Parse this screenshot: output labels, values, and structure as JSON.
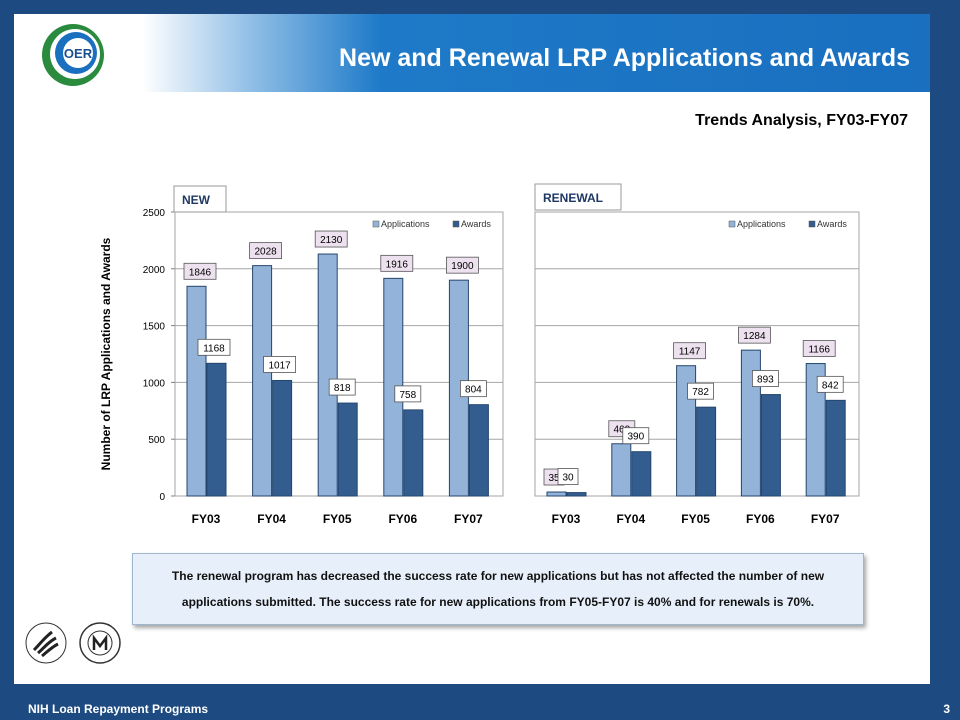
{
  "slide": {
    "title": "New and Renewal LRP Applications and Awards",
    "subtitle": "Trends Analysis, FY03-FY07",
    "note": "The renewal program has decreased the success rate for new applications but has not affected the number of new applications submitted. The success rate for new applications from FY05-FY07 is 40% and for renewals is 70%.",
    "footer_left": "NIH Loan Repayment Programs",
    "footer_right": "3",
    "logo_text": "OER",
    "hhs_logo_icon": "hhs-eagle-icon",
    "nih_logo_icon": "nih-logo-icon"
  },
  "chart_data": [
    {
      "type": "bar",
      "title": "NEW",
      "ylabel": "Number of LRP Applications and Awards",
      "categories": [
        "FY03",
        "FY04",
        "FY05",
        "FY06",
        "FY07"
      ],
      "ylim": [
        0,
        2500
      ],
      "yticks": [
        0,
        500,
        1000,
        1500,
        2000,
        2500
      ],
      "grid": true,
      "legend": "top-right",
      "series": [
        {
          "name": "Applications",
          "values": [
            1846,
            2028,
            2130,
            1916,
            1900
          ],
          "color": "#94b3d9"
        },
        {
          "name": "Awards",
          "values": [
            1168,
            1017,
            818,
            758,
            804
          ],
          "color": "#335d8f"
        }
      ]
    },
    {
      "type": "bar",
      "title": "RENEWAL",
      "categories": [
        "FY03",
        "FY04",
        "FY05",
        "FY06",
        "FY07"
      ],
      "ylim": [
        0,
        2500
      ],
      "grid": true,
      "legend": "top-right",
      "series": [
        {
          "name": "Applications",
          "values": [
            35,
            460,
            1147,
            1284,
            1166
          ],
          "color": "#94b3d9"
        },
        {
          "name": "Awards",
          "values": [
            30,
            390,
            782,
            893,
            842
          ],
          "color": "#335d8f"
        }
      ]
    }
  ]
}
